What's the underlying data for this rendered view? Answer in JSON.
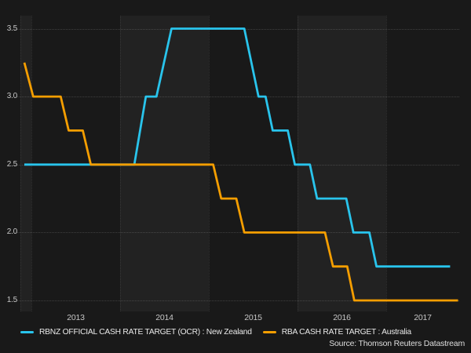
{
  "chart_data": {
    "type": "line",
    "subtype": "step-monthly",
    "title": "",
    "xlabel": "",
    "ylabel": "",
    "grid": "dotted",
    "legend_position": "bottom",
    "x_axis": {
      "tick_labels": [
        "2013",
        "2014",
        "2015",
        "2016",
        "2017"
      ],
      "label_years": [
        2013,
        2014,
        2015,
        2016,
        2017
      ],
      "year_boundaries": [
        2013,
        2014,
        2015,
        2016,
        2017
      ],
      "shaded_years": [
        2012,
        2014,
        2016
      ],
      "range": [
        2012.876,
        2017.82
      ]
    },
    "y_axis": {
      "tick_labels": [
        "3.5",
        "3.0",
        "2.5",
        "2.0",
        "1.5"
      ],
      "tick_values": [
        3.5,
        3.0,
        2.5,
        2.0,
        1.5
      ],
      "range": [
        1.42,
        3.6
      ]
    },
    "series": [
      {
        "name": "RBNZ OFFICIAL CASH RATE TARGET (OCR) : New Zealand",
        "color": "#29c4ec",
        "points": [
          [
            2012.92,
            2.5
          ],
          [
            2014.16,
            2.5
          ],
          [
            2014.29,
            3.0
          ],
          [
            2014.41,
            3.0
          ],
          [
            2014.58,
            3.5
          ],
          [
            2015.4,
            3.5
          ],
          [
            2015.56,
            3.0
          ],
          [
            2015.64,
            3.0
          ],
          [
            2015.72,
            2.75
          ],
          [
            2015.89,
            2.75
          ],
          [
            2015.97,
            2.5
          ],
          [
            2016.14,
            2.5
          ],
          [
            2016.22,
            2.25
          ],
          [
            2016.55,
            2.25
          ],
          [
            2016.63,
            2.0
          ],
          [
            2016.81,
            2.0
          ],
          [
            2016.89,
            1.75
          ],
          [
            2017.72,
            1.75
          ]
        ]
      },
      {
        "name": "RBA CASH RATE TARGET : Australia",
        "color": "#f59e00",
        "points": [
          [
            2012.92,
            3.25
          ],
          [
            2013.02,
            3.0
          ],
          [
            2013.33,
            3.0
          ],
          [
            2013.42,
            2.75
          ],
          [
            2013.58,
            2.75
          ],
          [
            2013.67,
            2.5
          ],
          [
            2015.05,
            2.5
          ],
          [
            2015.14,
            2.25
          ],
          [
            2015.31,
            2.25
          ],
          [
            2015.4,
            2.0
          ],
          [
            2016.31,
            2.0
          ],
          [
            2016.4,
            1.75
          ],
          [
            2016.56,
            1.75
          ],
          [
            2016.64,
            1.5
          ],
          [
            2017.81,
            1.5
          ]
        ]
      }
    ]
  },
  "source": {
    "label": "Source: Thomson Reuters Datastream"
  },
  "colors": {
    "background": "#191919",
    "band": "rgba(255,255,255,0.042)",
    "tick_text": "#c6c6c6",
    "legend_text": "#e9e9e9"
  }
}
